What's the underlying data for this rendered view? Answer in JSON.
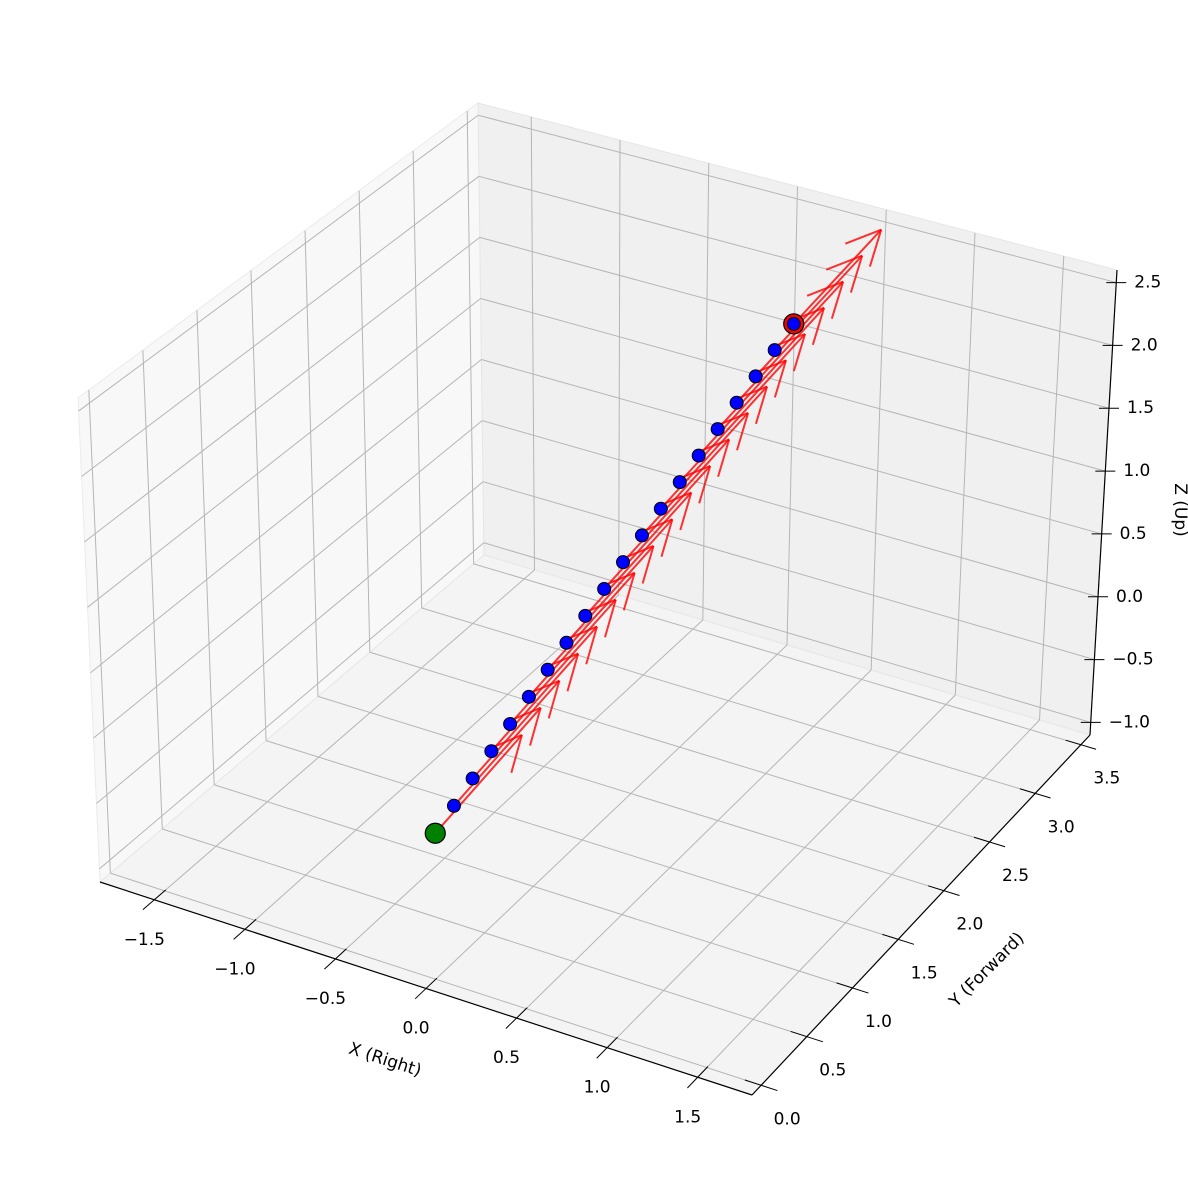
{
  "chart_data": {
    "type": "scatter3d",
    "x_label": "X (Right)",
    "y_label": "Y (Forward)",
    "z_label": "Z (Up)",
    "xlim": [
      -1.8,
      1.8
    ],
    "ylim": [
      -0.1,
      3.6
    ],
    "zlim": [
      -1.1,
      2.6
    ],
    "xticks": [
      {
        "value": -1.5,
        "label": "−1.5"
      },
      {
        "value": -1,
        "label": "−1.0"
      },
      {
        "value": -0.5,
        "label": "−0.5"
      },
      {
        "value": 0,
        "label": "0.0"
      },
      0.5,
      {
        "value": 1,
        "label": "1.0"
      },
      1.5
    ],
    "yticks": [
      {
        "value": 0,
        "label": "0.0"
      },
      0.5,
      {
        "value": 1,
        "label": "1.0"
      },
      1.5,
      {
        "value": 2,
        "label": "2.0"
      },
      2.5,
      {
        "value": 3,
        "label": "3.0"
      },
      3.5
    ],
    "zticks": [
      {
        "value": -1,
        "label": "−1.0"
      },
      {
        "value": -0.5,
        "label": "−0.5"
      },
      {
        "value": 0,
        "label": "0.0"
      },
      0.5,
      {
        "value": 1,
        "label": "1.0"
      },
      1.5,
      {
        "value": 2,
        "label": "2.0"
      },
      2.5
    ],
    "grid": true,
    "start": {
      "color": "#008000",
      "x": 0,
      "y": 0,
      "z": 0
    },
    "end": {
      "color": "#ff0000",
      "x": 0.304,
      "y": 3.04,
      "z": 1.995
    },
    "points": {
      "color": "#0000ff",
      "x": [
        0.016,
        0.032,
        0.048,
        0.064,
        0.08,
        0.096,
        0.112,
        0.128,
        0.144,
        0.16,
        0.176,
        0.192,
        0.208,
        0.224,
        0.24,
        0.256,
        0.272,
        0.288,
        0.304
      ],
      "y": [
        0.16,
        0.32,
        0.48,
        0.64,
        0.8,
        0.96,
        1.12,
        1.28,
        1.44,
        1.6,
        1.76,
        1.92,
        2.08,
        2.24,
        2.4,
        2.56,
        2.72,
        2.88,
        3.04
      ],
      "z": [
        0.105,
        0.21,
        0.315,
        0.42,
        0.525,
        0.63,
        0.735,
        0.84,
        0.945,
        1.05,
        1.155,
        1.26,
        1.365,
        1.47,
        1.575,
        1.68,
        1.785,
        1.89,
        1.995
      ]
    },
    "arrows": {
      "color": "#ff0000",
      "dx": 0.15,
      "dy": 0.6,
      "dz": 0.4
    }
  }
}
